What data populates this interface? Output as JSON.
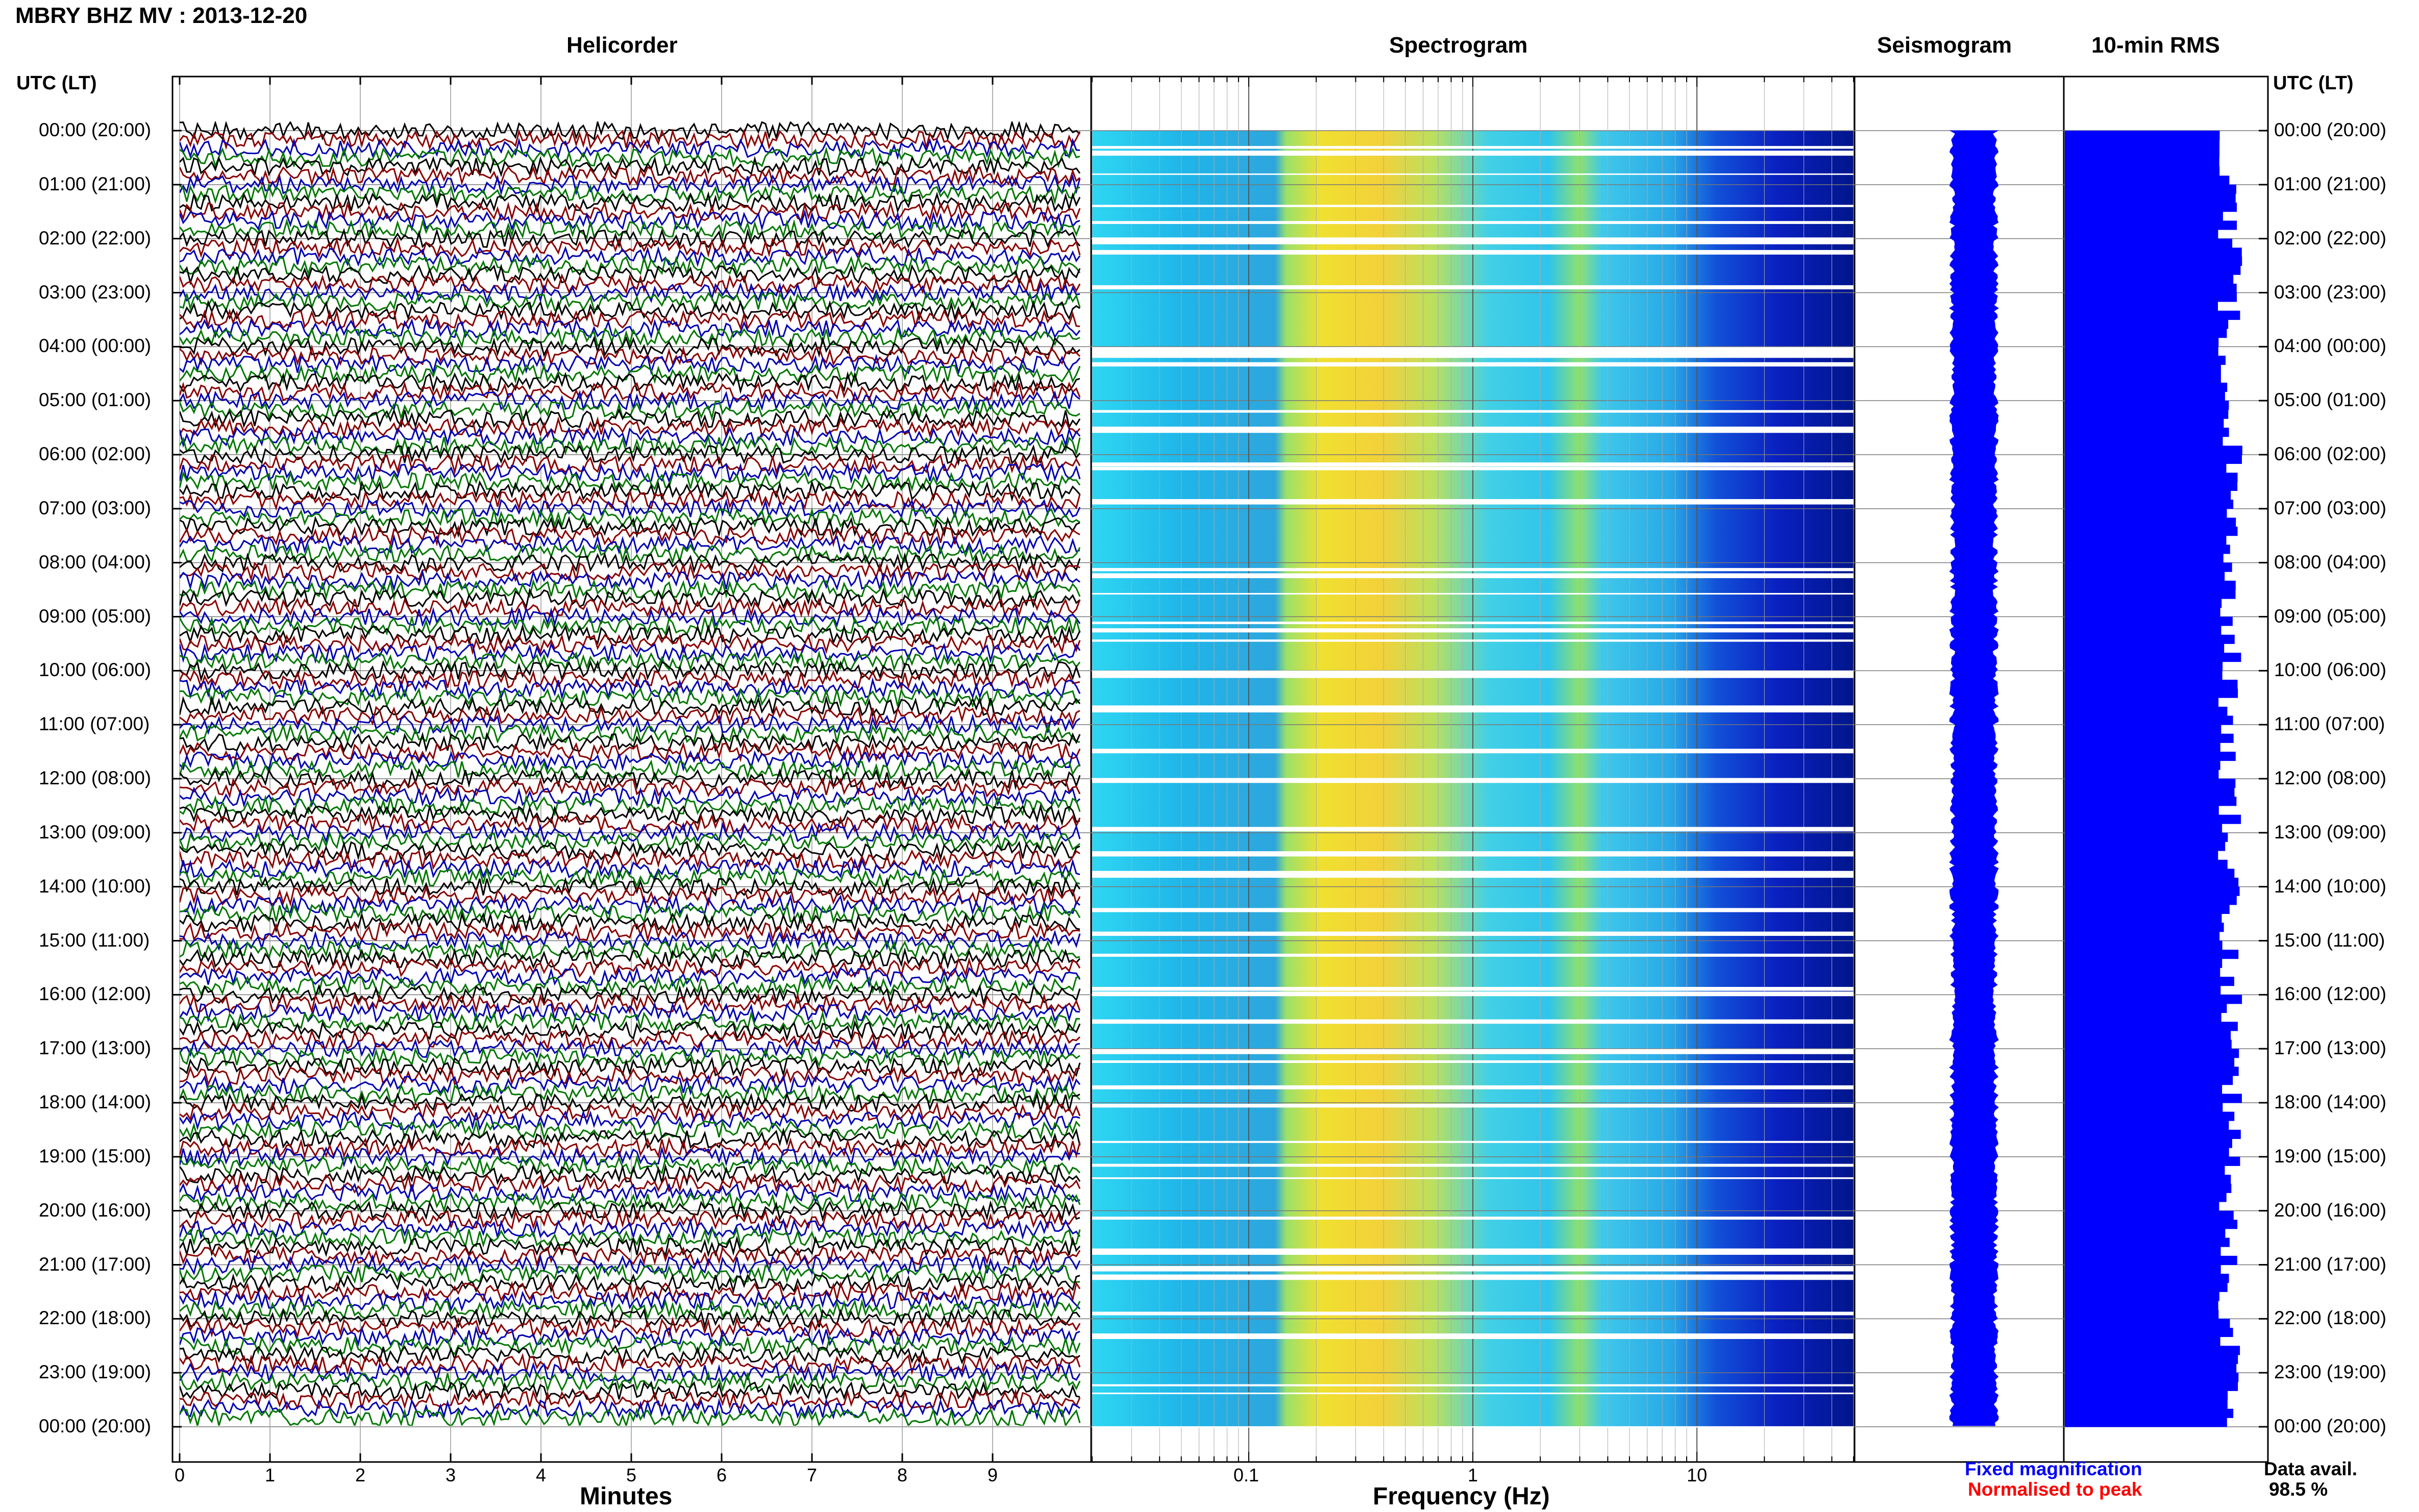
{
  "station_title": "MBRY BHZ MV : 2013-12-20",
  "panel_titles": {
    "helicorder": "Helicorder",
    "spectrogram": "Spectrogram",
    "seismogram": "Seismogram",
    "rms": "10-min RMS"
  },
  "time_axis_label": "UTC (LT)",
  "time_ticks": [
    "00:00 (20:00)",
    "01:00 (21:00)",
    "02:00 (22:00)",
    "03:00 (23:00)",
    "04:00 (00:00)",
    "05:00 (01:00)",
    "06:00 (02:00)",
    "07:00 (03:00)",
    "08:00 (04:00)",
    "09:00 (05:00)",
    "10:00 (06:00)",
    "11:00 (07:00)",
    "12:00 (08:00)",
    "13:00 (09:00)",
    "14:00 (10:00)",
    "15:00 (11:00)",
    "16:00 (12:00)",
    "17:00 (13:00)",
    "18:00 (14:00)",
    "19:00 (15:00)",
    "20:00 (16:00)",
    "21:00 (17:00)",
    "22:00 (18:00)",
    "23:00 (19:00)",
    "00:00 (20:00)"
  ],
  "legend": {
    "fixed": "Fixed magnification",
    "normalised": "Normalised to peak"
  },
  "availability": {
    "label": "Data avail.",
    "value": "98.5 %"
  },
  "colors": {
    "trace_palette": [
      "#000000",
      "#8b0000",
      "#0000b4",
      "#007800"
    ],
    "fixed": "#0000ff",
    "normalised": "#ff0000",
    "rms_bar": "#0000ff",
    "spectrogram_low": "#00008b",
    "spectrogram_high": "#ffd700"
  },
  "chart_data": [
    {
      "type": "line",
      "title": "Helicorder",
      "xlabel": "Minutes",
      "x_ticks": [
        "0",
        "1",
        "2",
        "3",
        "4",
        "5",
        "6",
        "7",
        "8",
        "9"
      ],
      "xlim": [
        0,
        10
      ],
      "rows_per_hour": 6,
      "trace_colors": "black, dark red, blue, green (cycling)"
    },
    {
      "type": "heatmap",
      "title": "Spectrogram",
      "xlabel": "Frequency (Hz)",
      "x_ticks": [
        "0.1",
        "1",
        "10"
      ],
      "x_scale": "log",
      "xlim": [
        0.02,
        50
      ],
      "peak_energy_band_hz": [
        0.15,
        0.6
      ],
      "secondary_band_hz": [
        3,
        4
      ]
    },
    {
      "type": "line",
      "title": "Seismogram",
      "xlabel": "",
      "series": [
        {
          "name": "Fixed magnification",
          "color": "#0000ff"
        },
        {
          "name": "Normalised to peak",
          "color": "#ff0000"
        }
      ]
    },
    {
      "type": "bar",
      "title": "10-min RMS",
      "xlabel": "",
      "orientation": "horizontal",
      "bins_per_hour": 6
    }
  ]
}
